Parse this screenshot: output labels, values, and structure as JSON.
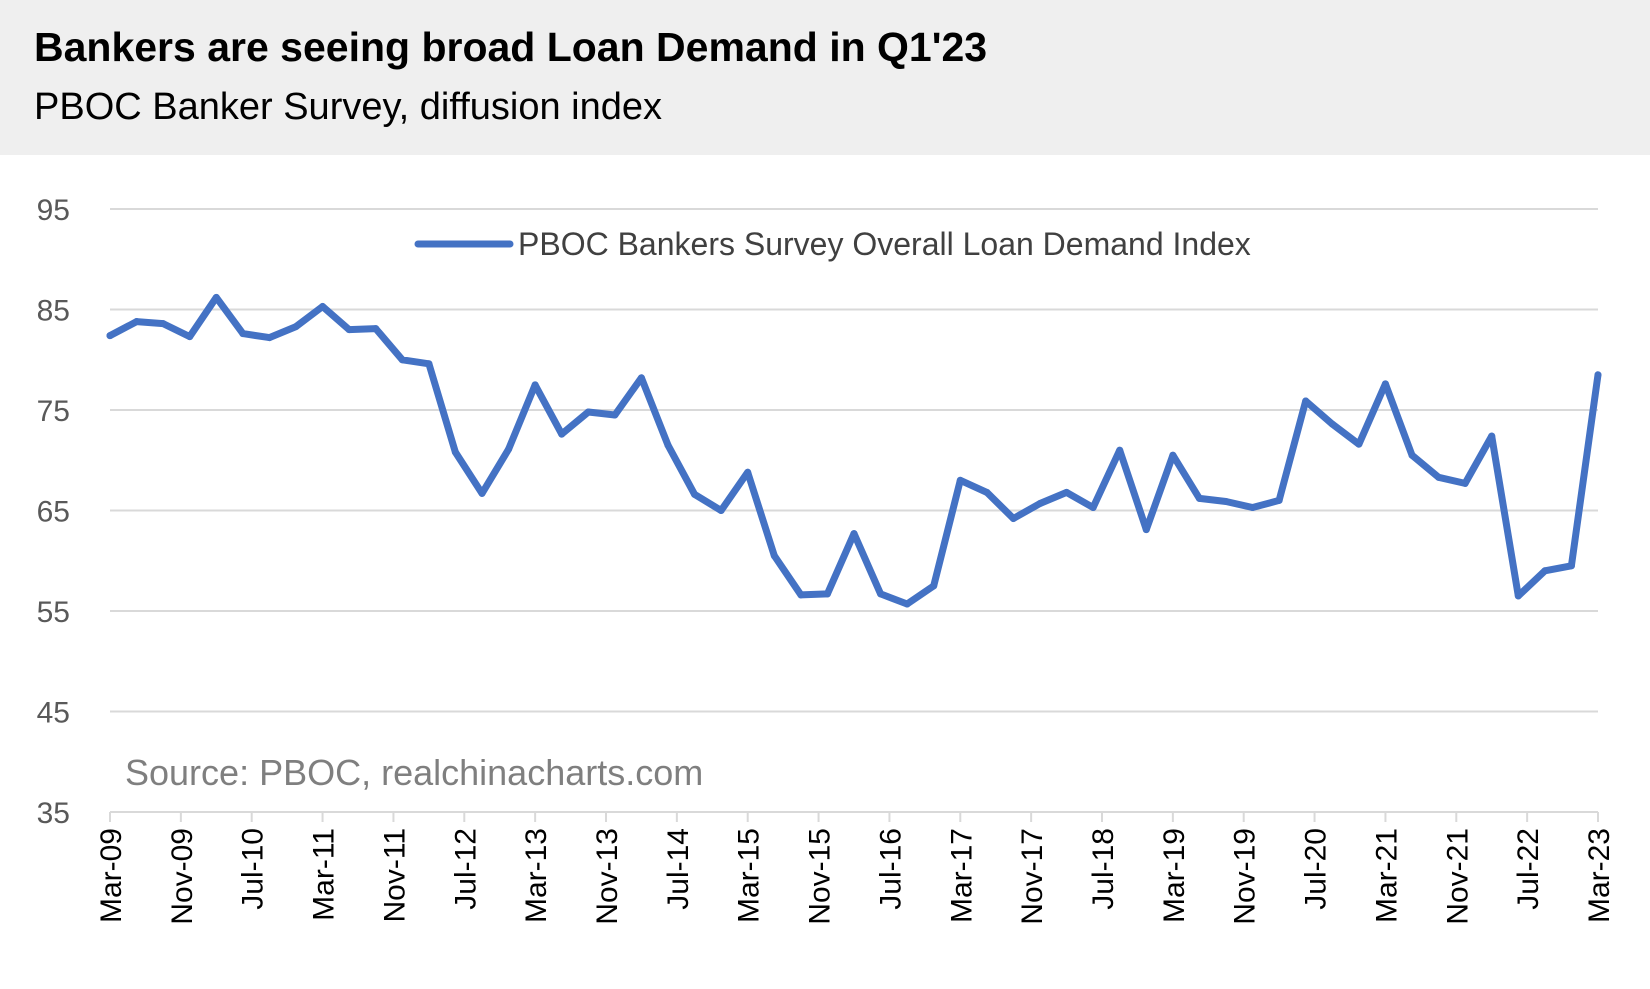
{
  "header": {
    "title": "Bankers are seeing broad Loan Demand in Q1'23",
    "subtitle": "PBOC Banker Survey, diffusion index"
  },
  "source": "Source: PBOC, realchinacharts.com",
  "colors": {
    "line": "#4472c4",
    "grid": "#d9d9d9",
    "header_bg": "#efefef"
  },
  "chart_data": {
    "type": "line",
    "title": "Bankers are seeing broad Loan Demand in Q1'23",
    "subtitle": "PBOC Banker Survey, diffusion index",
    "ylim": [
      35,
      95
    ],
    "yticks": [
      35,
      45,
      55,
      65,
      75,
      85,
      95
    ],
    "grid": true,
    "legend_position": "top-center",
    "xtick_labels": [
      "Mar-09",
      "Nov-09",
      "Jul-10",
      "Mar-11",
      "Nov-11",
      "Jul-12",
      "Mar-13",
      "Nov-13",
      "Jul-14",
      "Mar-15",
      "Nov-15",
      "Jul-16",
      "Mar-17",
      "Nov-17",
      "Jul-18",
      "Mar-19",
      "Nov-19",
      "Jul-20",
      "Mar-21",
      "Nov-21",
      "Jul-22",
      "Mar-23"
    ],
    "series": [
      {
        "name": "PBOC Bankers Survey Overall Loan Demand Index",
        "x": [
          "Mar-09",
          "Jun-09",
          "Sep-09",
          "Dec-09",
          "Mar-10",
          "Jun-10",
          "Sep-10",
          "Dec-10",
          "Mar-11",
          "Jun-11",
          "Sep-11",
          "Dec-11",
          "Mar-12",
          "Jun-12",
          "Sep-12",
          "Dec-12",
          "Mar-13",
          "Jun-13",
          "Sep-13",
          "Dec-13",
          "Mar-14",
          "Jun-14",
          "Sep-14",
          "Dec-14",
          "Mar-15",
          "Jun-15",
          "Sep-15",
          "Dec-15",
          "Mar-16",
          "Jun-16",
          "Sep-16",
          "Dec-16",
          "Mar-17",
          "Jun-17",
          "Sep-17",
          "Dec-17",
          "Mar-18",
          "Jun-18",
          "Sep-18",
          "Dec-18",
          "Mar-19",
          "Jun-19",
          "Sep-19",
          "Dec-19",
          "Mar-20",
          "Jun-20",
          "Sep-20",
          "Dec-20",
          "Mar-21",
          "Jun-21",
          "Sep-21",
          "Dec-21",
          "Mar-22",
          "Jun-22",
          "Sep-22",
          "Dec-22",
          "Mar-23"
        ],
        "values": [
          82.4,
          83.8,
          83.6,
          82.3,
          86.2,
          82.6,
          82.2,
          83.3,
          85.3,
          83.0,
          83.1,
          80.0,
          79.6,
          70.8,
          66.7,
          71.1,
          77.5,
          72.6,
          74.8,
          74.5,
          78.2,
          71.5,
          66.6,
          65.0,
          68.8,
          60.5,
          56.6,
          56.7,
          62.7,
          56.7,
          55.7,
          57.5,
          68.0,
          66.8,
          64.2,
          65.7,
          66.8,
          65.3,
          71.0,
          63.1,
          70.5,
          66.2,
          65.9,
          65.3,
          66.0,
          75.9,
          73.6,
          71.6,
          77.6,
          70.5,
          68.3,
          67.7,
          72.4,
          56.5,
          59.0,
          59.5,
          78.5
        ]
      }
    ]
  }
}
